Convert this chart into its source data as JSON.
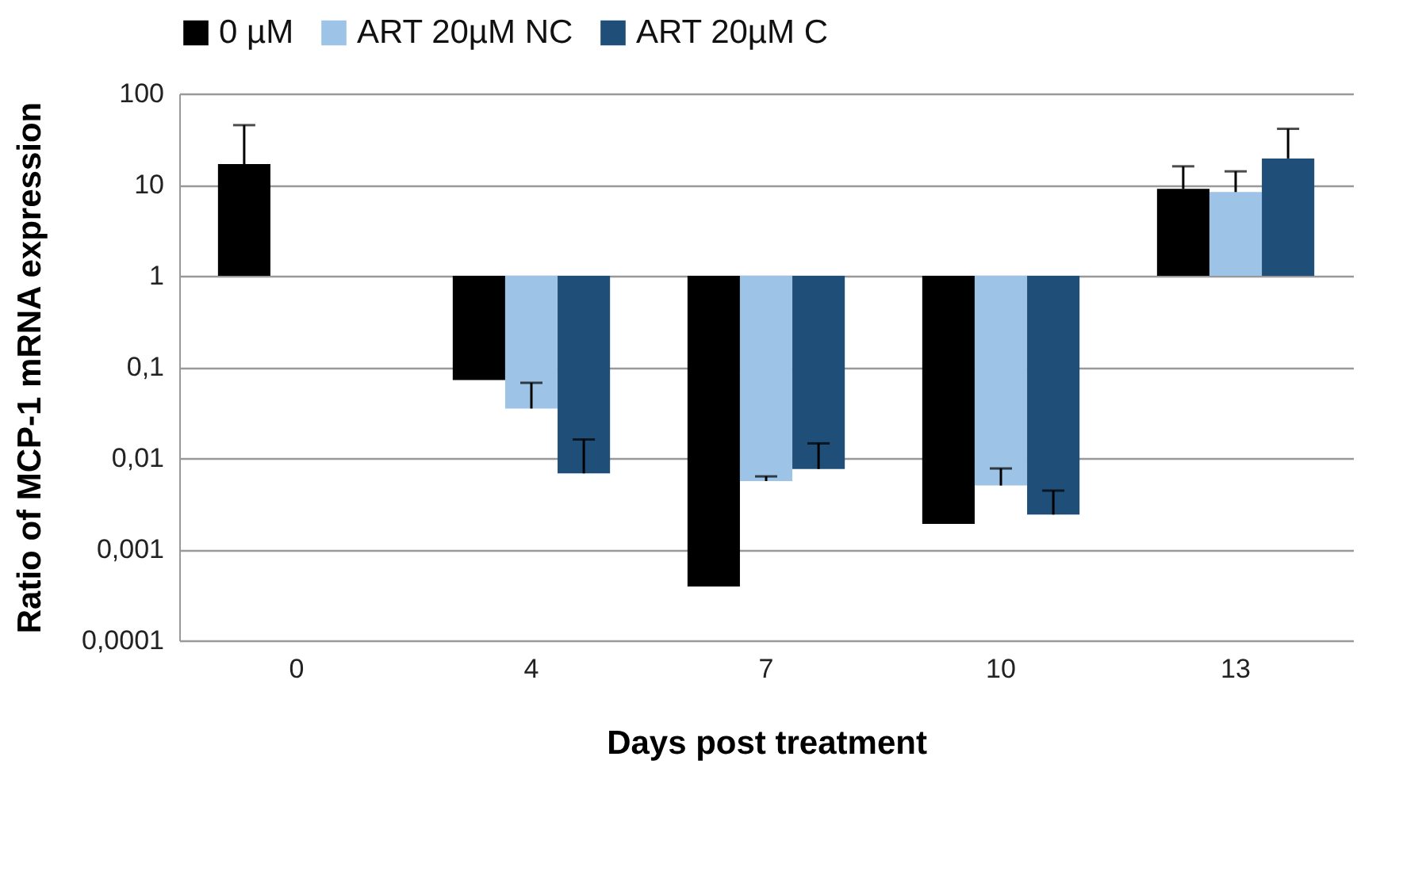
{
  "chart_data": {
    "type": "bar",
    "xlabel": "Days post treatment",
    "ylabel": "Ratio of MCP-1 mRNA expression",
    "categories": [
      "0",
      "4",
      "7",
      "10",
      "13"
    ],
    "series": [
      {
        "name": "0 µM",
        "color": "#000000",
        "base": [
          1,
          1,
          1,
          1,
          1
        ],
        "values": [
          15.8,
          -0.928,
          -0.99961,
          -0.9981,
          8.0
        ],
        "errors": [
          [
            16.8,
            45
          ],
          null,
          null,
          null,
          [
            9.0,
            15.9
          ]
        ]
      },
      {
        "name": "ART 20µM NC",
        "color": "#9dc3e6",
        "base": [
          null,
          1,
          1,
          1,
          1
        ],
        "values": [
          null,
          -0.965,
          -0.9944,
          -0.995,
          7.3
        ],
        "errors": [
          null,
          [
            0.035,
            0.067
          ],
          [
            0.0056,
            0.0063
          ],
          [
            0.005,
            0.0077
          ],
          [
            8.3,
            14
          ]
        ]
      },
      {
        "name": "ART 20µM C",
        "color": "#1f4e79",
        "base": [
          null,
          1,
          1,
          1,
          1
        ],
        "values": [
          null,
          -0.9932,
          -0.9924,
          -0.9976,
          18.4
        ],
        "errors": [
          null,
          [
            0.0068,
            0.016
          ],
          [
            0.0076,
            0.0145
          ],
          [
            0.0024,
            0.0044
          ],
          [
            19.4,
            41
          ]
        ]
      }
    ],
    "log": true,
    "ylim": [
      0.0001,
      100
    ],
    "yticks": [
      {
        "value": 0.0001,
        "label": "0,0001"
      },
      {
        "value": 0.001,
        "label": "0,001"
      },
      {
        "value": 0.01,
        "label": "0,01"
      },
      {
        "value": 0.1,
        "label": "0,1"
      },
      1,
      10,
      100
    ],
    "grid": "y",
    "legend": "top"
  }
}
